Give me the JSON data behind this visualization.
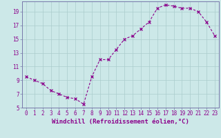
{
  "x": [
    0,
    1,
    2,
    3,
    4,
    5,
    6,
    7,
    8,
    9,
    10,
    11,
    12,
    13,
    14,
    15,
    16,
    17,
    18,
    19,
    20,
    21,
    22,
    23
  ],
  "y": [
    9.5,
    9.0,
    8.5,
    7.5,
    7.0,
    6.5,
    6.3,
    5.5,
    9.5,
    12.0,
    12.0,
    13.5,
    15.0,
    15.5,
    16.5,
    17.5,
    19.5,
    20.0,
    19.8,
    19.5,
    19.5,
    19.0,
    17.5,
    15.5
  ],
  "line_color": "#8B008B",
  "marker": "x",
  "bg_color": "#cce8e8",
  "grid_color": "#aacccc",
  "xlabel": "Windchill (Refroidissement éolien,°C)",
  "xlim_min": -0.5,
  "xlim_max": 23.5,
  "ylim_min": 5,
  "ylim_max": 20.5,
  "yticks": [
    5,
    7,
    9,
    11,
    13,
    15,
    17,
    19
  ],
  "xticks": [
    0,
    1,
    2,
    3,
    4,
    5,
    6,
    7,
    8,
    9,
    10,
    11,
    12,
    13,
    14,
    15,
    16,
    17,
    18,
    19,
    20,
    21,
    22,
    23
  ],
  "tick_fontsize": 5.5,
  "xlabel_fontsize": 6.5,
  "spine_color": "#7777aa"
}
